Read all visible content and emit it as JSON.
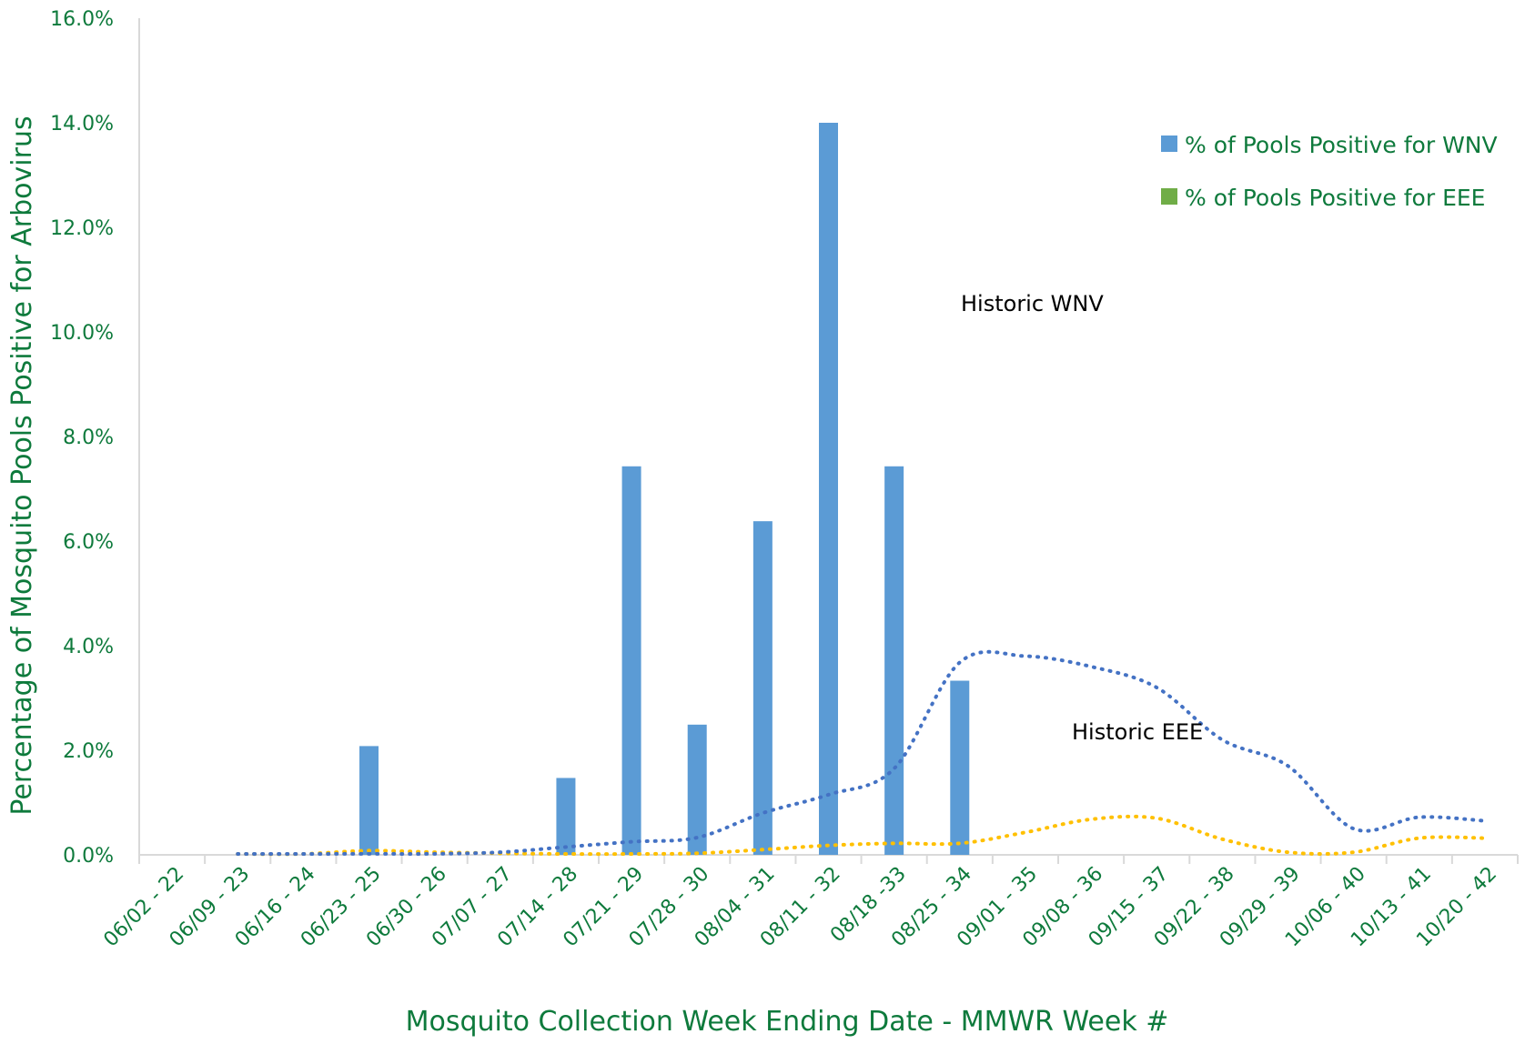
{
  "chart_data": {
    "type": "bar",
    "title": "",
    "xlabel": "Mosquito Collection Week Ending Date - MMWR Week #",
    "ylabel": "Percentage of Mosquito Pools Positive for Arbovirus",
    "ylim": [
      0,
      16
    ],
    "y_tick_step": 2,
    "y_tick_suffix": "%",
    "y_tick_decimals": 1,
    "grid": false,
    "legend_position": "top-right",
    "categories": [
      "06/02 - 22",
      "06/09 - 23",
      "06/16 - 24",
      "06/23 - 25",
      "06/30 - 26",
      "07/07 - 27",
      "07/14 - 28",
      "07/21 - 29",
      "07/28 - 30",
      "08/04 - 31",
      "08/11 - 32",
      "08/18 -33",
      "08/25 - 34",
      "09/01 - 35",
      "09/08 - 36",
      "09/15 - 37",
      "09/22 - 38",
      "09/29 - 39",
      "10/06 - 40",
      "10/13 - 41",
      "10/20 - 42"
    ],
    "series": [
      {
        "name": "% of Pools Positive for WNV",
        "kind": "bar",
        "color": "#5B9BD5",
        "values": [
          0,
          0,
          0,
          2.08,
          0,
          0,
          1.47,
          7.43,
          2.49,
          6.38,
          14.0,
          7.43,
          3.33,
          null,
          null,
          null,
          null,
          null,
          null,
          null,
          null
        ]
      },
      {
        "name": "% of Pools Positive for EEE",
        "kind": "bar",
        "color": "#70AD47",
        "values": [
          0,
          0,
          0,
          0,
          0,
          0,
          0,
          0,
          0,
          0,
          0,
          0,
          0,
          null,
          null,
          null,
          null,
          null,
          null,
          null,
          null
        ]
      },
      {
        "name": "Historic WNV",
        "kind": "line",
        "style": "dotted",
        "color": "#4472C4",
        "values": [
          0,
          0,
          0,
          0.02,
          0.02,
          0.05,
          0.15,
          0.25,
          0.33,
          0.8,
          1.15,
          1.65,
          3.68,
          3.8,
          3.6,
          3.2,
          2.2,
          1.7,
          0.5,
          0.72,
          0.65
        ]
      },
      {
        "name": "Historic EEE",
        "kind": "line",
        "style": "dotted",
        "color": "#FFC000",
        "values": [
          0,
          0,
          0,
          0.08,
          0.05,
          0.03,
          0.01,
          0.01,
          0.03,
          0.1,
          0.18,
          0.22,
          0.22,
          0.43,
          0.68,
          0.7,
          0.3,
          0.05,
          0.05,
          0.32,
          0.32
        ]
      }
    ],
    "annotations": [
      {
        "text": "Historic WNV"
      },
      {
        "text": "Historic EEE"
      }
    ]
  },
  "colors": {
    "axis_text": "#0E7A3C",
    "axis_line": "#D9D9D9",
    "annotation_text": "#000000"
  }
}
